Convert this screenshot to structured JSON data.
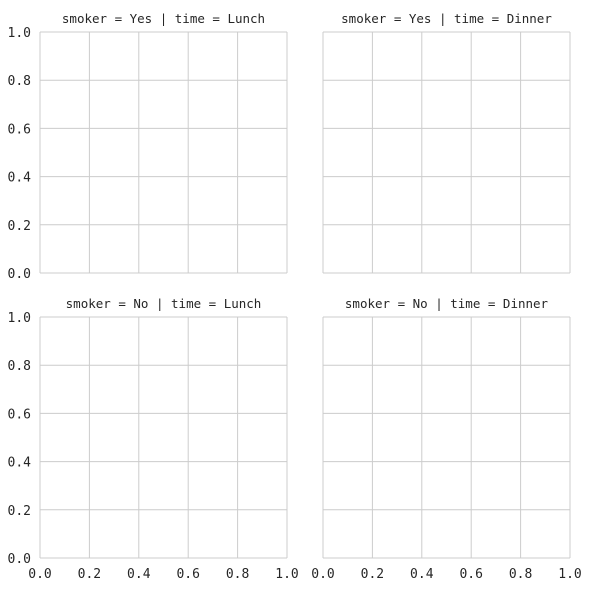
{
  "chart_data": {
    "type": "scatter",
    "layout": "facet-grid",
    "row_variable": "smoker",
    "col_variable": "time",
    "xlim": [
      0.0,
      1.0
    ],
    "ylim": [
      0.0,
      1.0
    ],
    "xticks": [
      "0.0",
      "0.2",
      "0.4",
      "0.6",
      "0.8",
      "1.0"
    ],
    "yticks": [
      "0.0",
      "0.2",
      "0.4",
      "0.6",
      "0.8",
      "1.0"
    ],
    "grid": true,
    "grid_color": "#cccccc",
    "spine_color": "#cccccc",
    "text_color": "#262626",
    "facets": [
      {
        "title": "smoker = Yes | time = Lunch",
        "row": 0,
        "col": 0,
        "points": []
      },
      {
        "title": "smoker = Yes | time = Dinner",
        "row": 0,
        "col": 1,
        "points": []
      },
      {
        "title": "smoker = No | time = Lunch",
        "row": 1,
        "col": 0,
        "points": []
      },
      {
        "title": "smoker = No | time = Dinner",
        "row": 1,
        "col": 1,
        "points": []
      }
    ]
  }
}
